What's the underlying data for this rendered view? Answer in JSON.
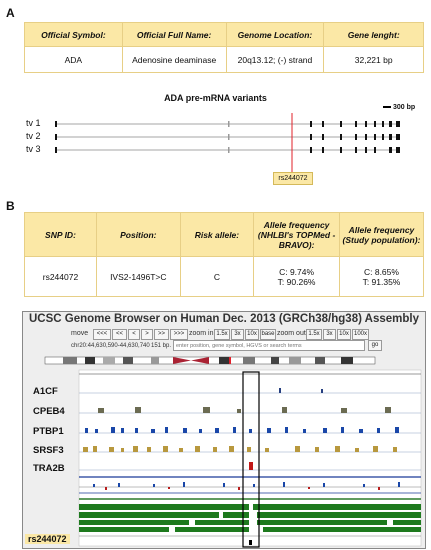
{
  "panels": {
    "a": "A",
    "b": "B"
  },
  "table_a": {
    "headers": [
      "Official Symbol:",
      "Official Full Name:",
      "Genome Location:",
      "Gene lenght:"
    ],
    "values": [
      "ADA",
      "Adenosine deaminase",
      "20q13.12; (-) strand",
      "32,221 bp"
    ]
  },
  "variants": {
    "title": "ADA pre-mRNA variants",
    "scale": "300 bp",
    "tracks": [
      "tv 1",
      "tv 2",
      "tv 3"
    ],
    "snp_label": "rs244072"
  },
  "table_b": {
    "headers": [
      "SNP ID:",
      "Position:",
      "Risk allele:",
      "Allele frequency (NHLBI's TOPMed - BRAVO):",
      "Allele frequency (Study population):"
    ],
    "values": [
      "rs244072",
      "IVS2-1496T>C",
      "C",
      "C:   9.74%\nT: 90.26%",
      "C:   8.65%\nT: 91.35%"
    ]
  },
  "browser": {
    "title": "UCSC Genome Browser on Human Dec. 2013 (GRCh38/hg38) Assembly",
    "move_label": "move",
    "move_buttons": [
      "<<<",
      "<<",
      "<",
      ">",
      ">>",
      ">>>"
    ],
    "zoom_in_label": "zoom in",
    "zoom_in_buttons": [
      "1.5x",
      "3x",
      "10x",
      "base"
    ],
    "zoom_out_label": "zoom out",
    "zoom_out_buttons": [
      "1.5x",
      "3x",
      "10x",
      "100x"
    ],
    "position": "chr20:44,630,590-44,630,740",
    "bp": "151 bp.",
    "search_placeholder": "enter position, gene symbol, HGVS or search terms",
    "go": "go",
    "track_labels": [
      "A1CF",
      "CPEB4",
      "PTBP1",
      "SRSF3",
      "TRA2B"
    ],
    "bottom_label": "rs244072"
  },
  "colors": {
    "header_fill": "#fbe8a6",
    "header_border": "#e7cf86",
    "snp_line": "#e0202a",
    "snp_box": "#fbe8a6"
  }
}
